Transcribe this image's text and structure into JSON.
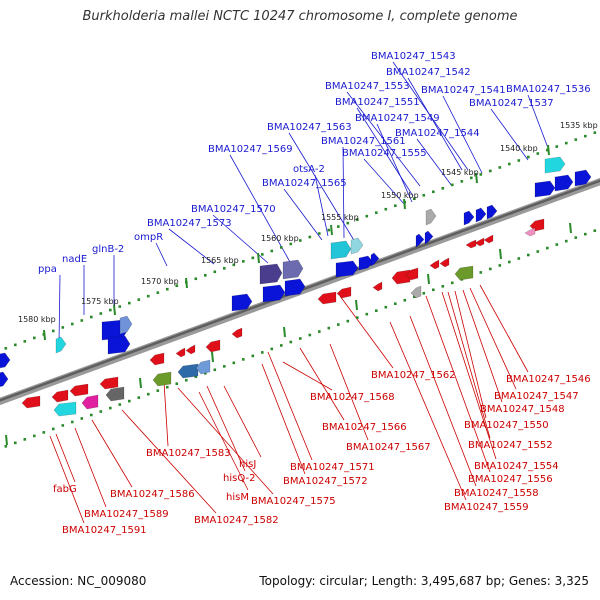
{
  "title": "Burkholderia mallei NCTC 10247 chromosome I, complete genome",
  "accession": "Accession: NC_009080",
  "topology": "Topology: circular; Length: 3,495,687 bp; Genes: 3,325",
  "colors": {
    "forward_label": "#1a1ad0",
    "reverse_label": "#cc0000",
    "forward_gene": "#0a14d8",
    "reverse_gene": "#e0101a",
    "backbone": "#7a7a7a",
    "tick": "#2a8a2a"
  },
  "scale_labels": [
    "1535 kbp",
    "1540 kbp",
    "1545 kbp",
    "1550 kbp",
    "1555 kbp",
    "1560 kbp",
    "1565 kbp",
    "1570 kbp",
    "1575 kbp",
    "1580 kbp"
  ],
  "forward_genes": [
    "BMA10247_1543",
    "BMA10247_1542",
    "BMA10247_1553",
    "BMA10247_1541",
    "BMA10247_1536",
    "BMA10247_1551",
    "BMA10247_1537",
    "BMA10247_1549",
    "BMA10247_1563",
    "BMA10247_1544",
    "BMA10247_1561",
    "BMA10247_1569",
    "BMA10247_1555",
    "otsA-2",
    "BMA10247_1565",
    "BMA10247_1570",
    "BMA10247_1573",
    "ompR",
    "glnB-2",
    "nadE",
    "ppa"
  ],
  "reverse_genes": [
    "BMA10247_1562",
    "BMA10247_1546",
    "BMA10247_1547",
    "BMA10247_1568",
    "BMA10247_1548",
    "BMA10247_1550",
    "BMA10247_1566",
    "BMA10247_1567",
    "BMA10247_1552",
    "BMA10247_1583",
    "hisJ",
    "BMA10247_1554",
    "BMA10247_1571",
    "hisQ-2",
    "BMA10247_1556",
    "BMA10247_1572",
    "fabG",
    "BMA10247_1586",
    "hisM",
    "BMA10247_1558",
    "BMA10247_1575",
    "BMA10247_1589",
    "BMA10247_1559",
    "BMA10247_1582",
    "BMA10247_1591"
  ]
}
